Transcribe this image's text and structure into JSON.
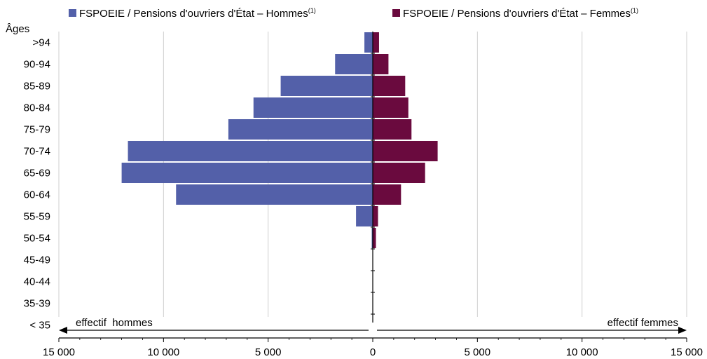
{
  "chart_data": {
    "type": "bar",
    "orientation": "horizontal",
    "layout": "population-pyramid",
    "y_axis_title": "Âges",
    "categories": [
      ">94",
      "90-94",
      "85-89",
      "80-84",
      "75-79",
      "70-74",
      "65-69",
      "60-64",
      "55-59",
      "50-54",
      "45-49",
      "40-44",
      "35-39",
      "< 35"
    ],
    "series": [
      {
        "name": "FSPOEIE / Pensions d'ouvriers d'État – Hommes",
        "name_sup": "(1)",
        "color": "#5360a9",
        "side": "left",
        "values": [
          400,
          1800,
          4400,
          5700,
          6900,
          11700,
          12000,
          9400,
          800,
          50,
          0,
          0,
          0,
          0
        ]
      },
      {
        "name": "FSPOEIE / Pensions d'ouvriers d'État – Femmes",
        "name_sup": "(1)",
        "color": "#6a0a3e",
        "side": "right",
        "values": [
          300,
          750,
          1550,
          1700,
          1850,
          3100,
          2500,
          1350,
          250,
          150,
          0,
          0,
          0,
          0
        ]
      }
    ],
    "x_range": [
      -15000,
      15000
    ],
    "x_ticks": [
      -15000,
      -10000,
      -5000,
      0,
      5000,
      10000,
      15000
    ],
    "x_tick_labels": [
      "15 000",
      "10 000",
      "5 000",
      "0",
      "5 000",
      "10 000",
      "15 000"
    ],
    "left_annotation": "effectif  hommes",
    "right_annotation": "effectif femmes",
    "legend_position": "top",
    "grid": true
  }
}
